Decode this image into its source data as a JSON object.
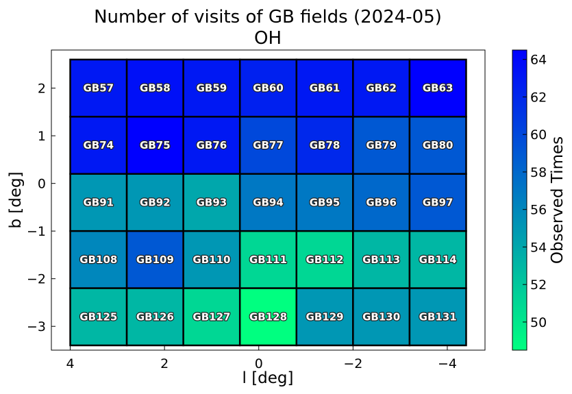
{
  "chart_data": {
    "type": "heatmap",
    "title": "Number of visits of GB fields (2024-05)",
    "subtitle": "OH",
    "xlabel": "l [deg]",
    "ylabel": "b [deg]",
    "colorbar_label": "Observed Times",
    "xlim": [
      4.4,
      -4.8
    ],
    "ylim": [
      -3.5,
      2.8
    ],
    "x_ticks": [
      4,
      2,
      0,
      -2,
      -4
    ],
    "x_tick_labels": [
      "4",
      "2",
      "0",
      "−2",
      "−4"
    ],
    "y_ticks": [
      2,
      1,
      0,
      -1,
      -2,
      -3
    ],
    "y_tick_labels": [
      "2",
      "1",
      "0",
      "−1",
      "−2",
      "−3"
    ],
    "color_range": [
      48.5,
      64.5
    ],
    "colorbar_ticks": [
      50,
      52,
      54,
      56,
      58,
      60,
      62,
      64
    ],
    "colorbar_tick_labels": [
      "50",
      "52",
      "54",
      "56",
      "58",
      "60",
      "62",
      "64"
    ],
    "colormap": {
      "low": "#00ff80",
      "high": "#0000ff"
    },
    "cell_size": {
      "l": 1.2,
      "b": 1.2
    },
    "grid": false,
    "cells": [
      {
        "label": "GB57",
        "l": 3.4,
        "b": 2.0,
        "value": 63
      },
      {
        "label": "GB58",
        "l": 2.2,
        "b": 2.0,
        "value": 63.5
      },
      {
        "label": "GB59",
        "l": 1.0,
        "b": 2.0,
        "value": 63
      },
      {
        "label": "GB60",
        "l": -0.2,
        "b": 2.0,
        "value": 62.5
      },
      {
        "label": "GB61",
        "l": -1.4,
        "b": 2.0,
        "value": 63
      },
      {
        "label": "GB62",
        "l": -2.6,
        "b": 2.0,
        "value": 63
      },
      {
        "label": "GB63",
        "l": -3.8,
        "b": 2.0,
        "value": 64.5
      },
      {
        "label": "GB74",
        "l": 3.4,
        "b": 0.8,
        "value": 63
      },
      {
        "label": "GB75",
        "l": 2.2,
        "b": 0.8,
        "value": 64.5
      },
      {
        "label": "GB76",
        "l": 1.0,
        "b": 0.8,
        "value": 63
      },
      {
        "label": "GB77",
        "l": -0.2,
        "b": 0.8,
        "value": 60
      },
      {
        "label": "GB78",
        "l": -1.4,
        "b": 0.8,
        "value": 62
      },
      {
        "label": "GB79",
        "l": -2.6,
        "b": 0.8,
        "value": 59
      },
      {
        "label": "GB80",
        "l": -3.8,
        "b": 0.8,
        "value": 59
      },
      {
        "label": "GB91",
        "l": 3.4,
        "b": -0.4,
        "value": 55
      },
      {
        "label": "GB92",
        "l": 2.2,
        "b": -0.4,
        "value": 55
      },
      {
        "label": "GB93",
        "l": 1.0,
        "b": -0.4,
        "value": 54
      },
      {
        "label": "GB94",
        "l": -0.2,
        "b": -0.4,
        "value": 57
      },
      {
        "label": "GB95",
        "l": -1.4,
        "b": -0.4,
        "value": 57
      },
      {
        "label": "GB96",
        "l": -2.6,
        "b": -0.4,
        "value": 58
      },
      {
        "label": "GB97",
        "l": -3.8,
        "b": -0.4,
        "value": 59
      },
      {
        "label": "GB108",
        "l": 3.4,
        "b": -1.6,
        "value": 56
      },
      {
        "label": "GB109",
        "l": 2.2,
        "b": -1.6,
        "value": 59
      },
      {
        "label": "GB110",
        "l": 1.0,
        "b": -1.6,
        "value": 55
      },
      {
        "label": "GB111",
        "l": -0.2,
        "b": -1.6,
        "value": 51
      },
      {
        "label": "GB112",
        "l": -1.4,
        "b": -1.6,
        "value": 51
      },
      {
        "label": "GB113",
        "l": -2.6,
        "b": -1.6,
        "value": 53
      },
      {
        "label": "GB114",
        "l": -3.8,
        "b": -1.6,
        "value": 53
      },
      {
        "label": "GB125",
        "l": 3.4,
        "b": -2.8,
        "value": 53
      },
      {
        "label": "GB126",
        "l": 2.2,
        "b": -2.8,
        "value": 53
      },
      {
        "label": "GB127",
        "l": 1.0,
        "b": -2.8,
        "value": 51
      },
      {
        "label": "GB128",
        "l": -0.2,
        "b": -2.8,
        "value": 48.5
      },
      {
        "label": "GB129",
        "l": -1.4,
        "b": -2.8,
        "value": 55
      },
      {
        "label": "GB130",
        "l": -2.6,
        "b": -2.8,
        "value": 55
      },
      {
        "label": "GB131",
        "l": -3.8,
        "b": -2.8,
        "value": 55
      }
    ]
  }
}
